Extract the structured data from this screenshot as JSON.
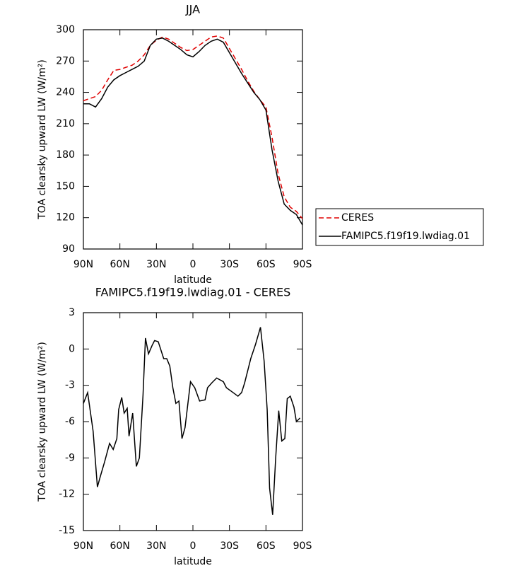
{
  "chart_data": [
    {
      "type": "line",
      "title": "JJA",
      "xlabel": "latitude",
      "ylabel": "TOA clearsky upward LW (W/m²)",
      "x": [
        90,
        85,
        80,
        75,
        70,
        65,
        60,
        55,
        50,
        45,
        40,
        35,
        30,
        25,
        20,
        15,
        10,
        5,
        0,
        -5,
        -10,
        -15,
        -20,
        -25,
        -30,
        -35,
        -40,
        -45,
        -50,
        -55,
        -60,
        -65,
        -70,
        -75,
        -80,
        -85,
        -90
      ],
      "series": [
        {
          "name": "CERES",
          "color": "#e00000",
          "line_style": "dashed",
          "values": [
            232,
            234,
            236,
            242,
            252,
            261,
            262,
            264,
            266,
            270,
            276,
            285,
            290,
            293,
            291,
            287,
            283,
            280,
            281,
            285,
            289,
            293,
            294,
            292,
            282,
            272,
            262,
            251,
            241,
            233,
            226,
            197,
            162,
            140,
            130,
            126,
            119
          ]
        },
        {
          "name": "FAMIPC5.f19f19.lwdiag.01",
          "color": "#000000",
          "line_style": "solid",
          "values": [
            229,
            229,
            226,
            234,
            245,
            252,
            256,
            259,
            262,
            265,
            270,
            285,
            291,
            292,
            289,
            285,
            281,
            276,
            274,
            279,
            285,
            289,
            291,
            288,
            278,
            268,
            258,
            249,
            240,
            233,
            223,
            185,
            155,
            133,
            127,
            123,
            113
          ]
        }
      ],
      "xlim": [
        90,
        -90
      ],
      "xticks": [
        {
          "value": 90,
          "label": "90N"
        },
        {
          "value": 60,
          "label": "60N"
        },
        {
          "value": 30,
          "label": "30N"
        },
        0,
        {
          "value": -30,
          "label": "30S"
        },
        {
          "value": -60,
          "label": "60S"
        },
        {
          "value": -90,
          "label": "90S"
        }
      ],
      "ylim": [
        90,
        300
      ],
      "yticks": [
        90,
        120,
        150,
        180,
        210,
        240,
        270,
        300
      ],
      "legend": "right"
    },
    {
      "type": "line",
      "title": "FAMIPC5.f19f19.lwdiag.01 - CERES",
      "xlabel": "latitude",
      "ylabel": "TOA clearsky upward LW (W/m²)",
      "x": [
        90,
        86.5,
        82,
        78.5,
        76,
        72.5,
        68.5,
        65.5,
        62.5,
        61,
        58.5,
        56.5,
        54,
        52.5,
        49.5,
        46.5,
        44,
        41,
        39,
        36.5,
        33.5,
        31.5,
        28.5,
        24,
        21.5,
        19,
        16.5,
        14,
        11.5,
        9,
        6.5,
        2,
        -1.5,
        -5.5,
        -10,
        -12,
        -15.5,
        -19.5,
        -25,
        -27.5,
        -33,
        -37,
        -40,
        -42.5,
        -46,
        -47.5,
        -51.5,
        -55.5,
        -58.5,
        -61,
        -63,
        -65.5,
        -68,
        -70.5,
        -73,
        -75.5,
        -77.5,
        -80,
        -83,
        -85,
        -88
      ],
      "series": [
        {
          "color": "#000000",
          "values": [
            -4.5,
            -3.6,
            -6.8,
            -11.4,
            -10.5,
            -9.3,
            -7.8,
            -8.3,
            -7.4,
            -5,
            -4,
            -5.3,
            -4.9,
            -7.2,
            -5.3,
            -9.7,
            -9,
            -3.8,
            0.9,
            -0.4,
            0.3,
            0.7,
            0.6,
            -0.8,
            -0.8,
            -1.4,
            -3.2,
            -4.5,
            -4.3,
            -7.4,
            -6.5,
            -2.7,
            -3.2,
            -4.3,
            -4.2,
            -3.2,
            -2.8,
            -2.4,
            -2.7,
            -3.2,
            -3.6,
            -3.9,
            -3.6,
            -2.8,
            -1.4,
            -0.8,
            0.4,
            1.8,
            -1,
            -5,
            -11.5,
            -13.7,
            -9,
            -5.1,
            -7.6,
            -7.4,
            -4.1,
            -3.9,
            -4.8,
            -6,
            -5.7
          ]
        }
      ],
      "xlim": [
        90,
        -90
      ],
      "xticks": [
        {
          "value": 90,
          "label": "90N"
        },
        {
          "value": 60,
          "label": "60N"
        },
        {
          "value": 30,
          "label": "30N"
        },
        0,
        {
          "value": -30,
          "label": "30S"
        },
        {
          "value": -60,
          "label": "60S"
        },
        {
          "value": -90,
          "label": "90S"
        }
      ],
      "ylim": [
        -15,
        3
      ],
      "yticks": [
        -15,
        -12,
        -9,
        -6,
        -3,
        0,
        3
      ]
    }
  ]
}
